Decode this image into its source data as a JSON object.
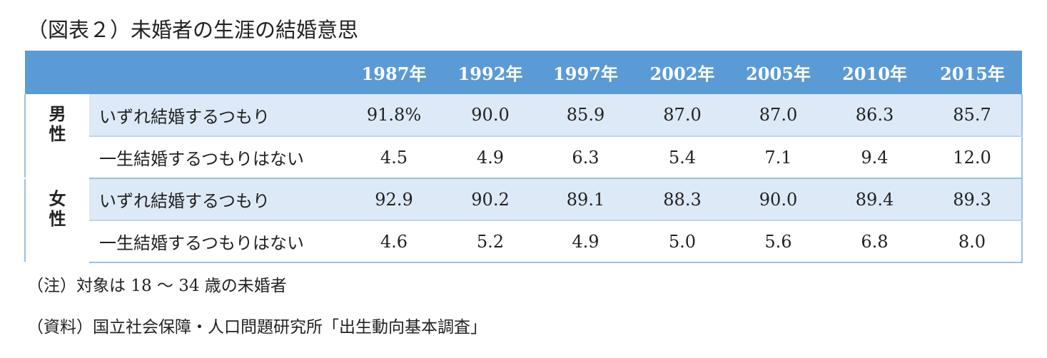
{
  "title": "（図表２）未婚者の生涯の結婚意思",
  "chart_data": {
    "type": "table",
    "columns": [
      "1987年",
      "1992年",
      "1997年",
      "2002年",
      "2005年",
      "2010年",
      "2015年"
    ],
    "groups": [
      {
        "name": "男性",
        "rows": [
          {
            "label": "いずれ結婚するつもり",
            "values": [
              "91.8%",
              "90.0",
              "85.9",
              "87.0",
              "87.0",
              "86.3",
              "85.7"
            ]
          },
          {
            "label": "一生結婚するつもりはない",
            "values": [
              "4.5",
              "4.9",
              "6.3",
              "5.4",
              "7.1",
              "9.4",
              "12.0"
            ]
          }
        ]
      },
      {
        "name": "女性",
        "rows": [
          {
            "label": "いずれ結婚するつもり",
            "values": [
              "92.9",
              "90.2",
              "89.1",
              "88.3",
              "90.0",
              "89.4",
              "89.3"
            ]
          },
          {
            "label": "一生結婚するつもりはない",
            "values": [
              "4.6",
              "5.2",
              "4.9",
              "5.0",
              "5.6",
              "6.8",
              "8.0"
            ]
          }
        ]
      }
    ]
  },
  "notes": {
    "note": "（注）対象は 18 ～ 34 歳の未婚者",
    "source": "（資料）国立社会保障・人口問題研究所「出生動向基本調査」"
  },
  "colors": {
    "header_bg": "#5b9bd5",
    "shade_bg": "#dde9f6",
    "border": "#9dbfe3"
  }
}
